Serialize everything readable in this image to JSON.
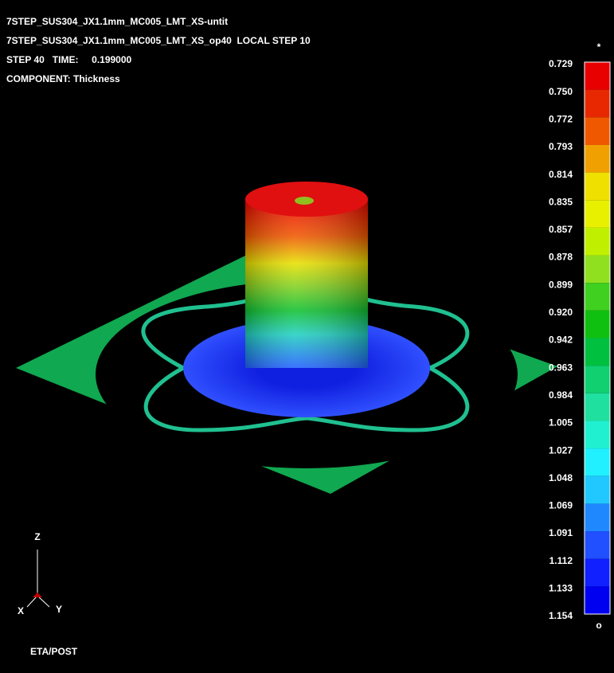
{
  "header": {
    "lines": [
      "7STEP_SUS304_JX1.1mm_MC005_LMT_XS-untit",
      "7STEP_SUS304_JX1.1mm_MC005_LMT_XS_op40  LOCAL STEP 10",
      "STEP 40   TIME:     0.199000",
      "COMPONENT: Thickness"
    ]
  },
  "legend": {
    "top_mark": "*",
    "bottom_mark": "o",
    "labels": [
      "0.729",
      "0.750",
      "0.772",
      "0.793",
      "0.814",
      "0.835",
      "0.857",
      "0.878",
      "0.899",
      "0.920",
      "0.942",
      "0.963",
      "0.984",
      "1.005",
      "1.027",
      "1.048",
      "1.069",
      "1.091",
      "1.112",
      "1.133",
      "1.154"
    ],
    "colors": [
      "#e80000",
      "#e82800",
      "#f05800",
      "#f0a000",
      "#f0e000",
      "#e8f000",
      "#c0f000",
      "#90e020",
      "#40d020",
      "#10c010",
      "#00c040",
      "#10d070",
      "#20e0a0",
      "#20f0d0",
      "#20f0ff",
      "#20c8ff",
      "#2088ff",
      "#2050ff",
      "#1020ff",
      "#0000f0"
    ]
  },
  "axes": {
    "z": "Z",
    "x": "X",
    "y": "Y"
  },
  "footer": "ETA/POST"
}
